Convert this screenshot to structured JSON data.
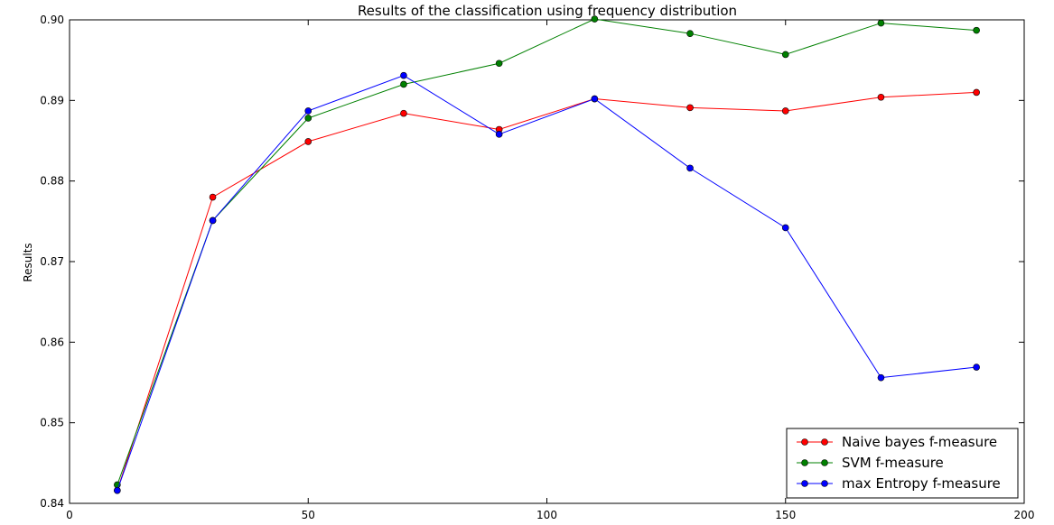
{
  "chart_data": {
    "type": "line",
    "title": "Results of the classification using frequency distribution",
    "xlabel": "",
    "ylabel": "Results",
    "xlim": [
      0,
      200
    ],
    "ylim": [
      0.84,
      0.9
    ],
    "x_ticks": [
      0,
      50,
      100,
      150,
      200
    ],
    "x_tick_labels": [
      "0",
      "50",
      "100",
      "150",
      "200"
    ],
    "y_ticks": [
      0.84,
      0.85,
      0.86,
      0.87,
      0.88,
      0.89,
      0.9
    ],
    "y_tick_labels": [
      "0.84",
      "0.85",
      "0.86",
      "0.87",
      "0.88",
      "0.89",
      "0.90"
    ],
    "grid": false,
    "legend_position": "bottom-right",
    "x": [
      10,
      30,
      50,
      70,
      90,
      110,
      130,
      150,
      170,
      190
    ],
    "series": [
      {
        "name": "Naive bayes f-measure",
        "color": "#ff0000",
        "values": [
          0.8416,
          0.878,
          0.8849,
          0.8884,
          0.8864,
          0.8902,
          0.8891,
          0.8887,
          0.8904,
          0.891
        ]
      },
      {
        "name": "SVM f-measure",
        "color": "#008000",
        "values": [
          0.8423,
          0.8751,
          0.8878,
          0.892,
          0.8946,
          0.9001,
          0.8983,
          0.8957,
          0.8996,
          0.8987
        ]
      },
      {
        "name": "max Entropy f-measure",
        "color": "#0000ff",
        "values": [
          0.8416,
          0.8751,
          0.8887,
          0.8931,
          0.8858,
          0.8902,
          0.8816,
          0.8742,
          0.8556,
          0.8569
        ]
      }
    ]
  }
}
